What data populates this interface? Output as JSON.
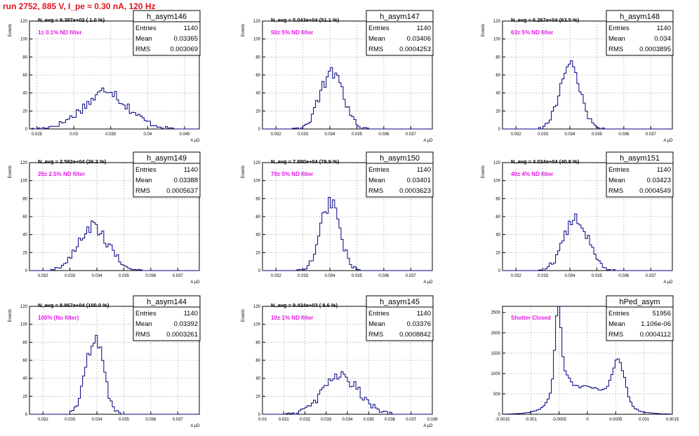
{
  "page_title": "run 2752,   885 V, I_pe ≈ 0.30 nA, 120 Hz",
  "colors": {
    "title": "#e0141e",
    "annotation": "#e617e6",
    "histogram": "#000080",
    "axis": "#000000",
    "grid": "#bfbfbf"
  },
  "chart_data": [
    {
      "type": "histogram",
      "name": "h_asym146",
      "ylabel": "Events",
      "xlabel": "A_{μD}",
      "xlim": [
        0.024,
        0.047
      ],
      "ylim": [
        0,
        120
      ],
      "xticks": [
        0.025,
        0.03,
        0.035,
        0.04,
        0.045
      ],
      "xtick_labels": [
        "0.025",
        "0.03",
        "0.035",
        "0.04",
        "0.045"
      ],
      "yticks": [
        0,
        20,
        40,
        60,
        80,
        100,
        120
      ],
      "stats": {
        "entries": "1140",
        "mean": "0.03365",
        "rms": "0.003069"
      },
      "avg_text": "N_avg = 9.387e+02 ( 1.0 %)",
      "filter_text": "1± 0.1% ND filter",
      "peaks": [
        {
          "center": 0.0343,
          "sigma": 0.0032,
          "height": 38
        },
        {
          "center": 0.0348,
          "sigma": 0.0008,
          "height": 8
        }
      ]
    },
    {
      "type": "histogram",
      "name": "h_asym147",
      "ylabel": "Events",
      "xlabel": "A_{μD}",
      "xlim": [
        0.0315,
        0.0378
      ],
      "ylim": [
        0,
        120
      ],
      "xticks": [
        0.032,
        0.033,
        0.034,
        0.035,
        0.036,
        0.037
      ],
      "xtick_labels": [
        "0.032",
        "0.033",
        "0.034",
        "0.035",
        "0.036",
        "0.037"
      ],
      "yticks": [
        0,
        20,
        40,
        60,
        80,
        100,
        120
      ],
      "stats": {
        "entries": "1140",
        "mean": "0.03406",
        "rms": "0.0004253"
      },
      "avg_text": "N_avg = 5.043e+04 (51.1 %)",
      "filter_text": "50± 5% ND filter",
      "peaks": [
        {
          "center": 0.03406,
          "sigma": 0.000425,
          "height": 62
        }
      ]
    },
    {
      "type": "histogram",
      "name": "h_asym148",
      "ylabel": "Events",
      "xlabel": "A_{μD}",
      "xlim": [
        0.0315,
        0.0378
      ],
      "ylim": [
        0,
        120
      ],
      "xticks": [
        0.032,
        0.033,
        0.034,
        0.035,
        0.036,
        0.037
      ],
      "xtick_labels": [
        "0.032",
        "0.033",
        "0.034",
        "0.035",
        "0.036",
        "0.037"
      ],
      "yticks": [
        0,
        20,
        40,
        60,
        80,
        100,
        120
      ],
      "stats": {
        "entries": "1140",
        "mean": "0.034",
        "rms": "0.0003895"
      },
      "avg_text": "N_avg = 6.267e+04 (63.5 %)",
      "filter_text": "63± 5% ND filter",
      "peaks": [
        {
          "center": 0.034,
          "sigma": 0.00039,
          "height": 68
        }
      ]
    },
    {
      "type": "histogram",
      "name": "h_asym149",
      "ylabel": "Events",
      "xlabel": "A_{μD}",
      "xlim": [
        0.0315,
        0.0378
      ],
      "ylim": [
        0,
        120
      ],
      "xticks": [
        0.032,
        0.033,
        0.034,
        0.035,
        0.036,
        0.037
      ],
      "xtick_labels": [
        "0.032",
        "0.033",
        "0.034",
        "0.035",
        "0.036",
        "0.037"
      ],
      "yticks": [
        0,
        20,
        40,
        60,
        80,
        100,
        120
      ],
      "stats": {
        "entries": "1140",
        "mean": "0.03388",
        "rms": "0.0005637"
      },
      "avg_text": "N_avg = 2.582e+04 (26.2 %)",
      "filter_text": "25± 2.5% ND filter",
      "peaks": [
        {
          "center": 0.03388,
          "sigma": 0.00056,
          "height": 48
        }
      ]
    },
    {
      "type": "histogram",
      "name": "h_asym150",
      "ylabel": "Events",
      "xlabel": "A_{μD}",
      "xlim": [
        0.0315,
        0.0378
      ],
      "ylim": [
        0,
        120
      ],
      "xticks": [
        0.032,
        0.033,
        0.034,
        0.035,
        0.036,
        0.037
      ],
      "xtick_labels": [
        "0.032",
        "0.033",
        "0.034",
        "0.035",
        "0.036",
        "0.037"
      ],
      "yticks": [
        0,
        20,
        40,
        60,
        80,
        100,
        120
      ],
      "stats": {
        "entries": "1140",
        "mean": "0.03401",
        "rms": "0.0003623"
      },
      "avg_text": "N_avg = 7.880e+04 (79.9 %)",
      "filter_text": "79± 5% ND filter",
      "peaks": [
        {
          "center": 0.03401,
          "sigma": 0.00036,
          "height": 76
        }
      ]
    },
    {
      "type": "histogram",
      "name": "h_asym151",
      "ylabel": "Events",
      "xlabel": "A_{μD}",
      "xlim": [
        0.0315,
        0.0378
      ],
      "ylim": [
        0,
        120
      ],
      "xticks": [
        0.032,
        0.033,
        0.034,
        0.035,
        0.036,
        0.037
      ],
      "xtick_labels": [
        "0.032",
        "0.033",
        "0.034",
        "0.035",
        "0.036",
        "0.037"
      ],
      "yticks": [
        0,
        20,
        40,
        60,
        80,
        100,
        120
      ],
      "stats": {
        "entries": "1140",
        "mean": "0.03423",
        "rms": "0.0004549"
      },
      "avg_text": "N_avg = 4.024e+04 (40.8 %)",
      "filter_text": "40± 4% ND filter",
      "peaks": [
        {
          "center": 0.03423,
          "sigma": 0.00045,
          "height": 58
        }
      ]
    },
    {
      "type": "histogram",
      "name": "h_asym144",
      "ylabel": "Events",
      "xlabel": "A_{μD}",
      "xlim": [
        0.0315,
        0.0378
      ],
      "ylim": [
        0,
        120
      ],
      "xticks": [
        0.032,
        0.033,
        0.034,
        0.035,
        0.036,
        0.037
      ],
      "xtick_labels": [
        "0.032",
        "0.033",
        "0.034",
        "0.035",
        "0.036",
        "0.037"
      ],
      "yticks": [
        0,
        20,
        40,
        60,
        80,
        100,
        120
      ],
      "stats": {
        "entries": "1140",
        "mean": "0.03392",
        "rms": "0.0003261"
      },
      "avg_text": "N_avg = 9.867e+04 (100.0 %)",
      "filter_text": "100% (No filter)",
      "peaks": [
        {
          "center": 0.03392,
          "sigma": 0.00033,
          "height": 82
        }
      ]
    },
    {
      "type": "histogram",
      "name": "h_asym145",
      "ylabel": "Events",
      "xlabel": "A_{μD}",
      "xlim": [
        0.03,
        0.038
      ],
      "ylim": [
        0,
        120
      ],
      "xticks": [
        0.03,
        0.031,
        0.032,
        0.033,
        0.034,
        0.035,
        0.036,
        0.037,
        0.038
      ],
      "xtick_labels": [
        "0.03",
        "0.031",
        "0.032",
        "0.033",
        "0.034",
        "0.035",
        "0.036",
        "0.037",
        "0.038"
      ],
      "yticks": [
        0,
        20,
        40,
        60,
        80,
        100,
        120
      ],
      "stats": {
        "entries": "1140",
        "mean": "0.03376",
        "rms": "0.0008842"
      },
      "avg_text": "N_avg = 9.424e+03 ( 9.6 %)",
      "filter_text": "10± 1% ND filter",
      "peaks": [
        {
          "center": 0.0337,
          "sigma": 0.00085,
          "height": 42
        }
      ]
    },
    {
      "type": "histogram",
      "name": "hPed_asym",
      "ylabel": "",
      "xlabel": "",
      "xlim": [
        -0.0015,
        0.0015
      ],
      "ylim": [
        0,
        2650
      ],
      "xticks": [
        -0.0015,
        -0.001,
        -0.0005,
        0,
        0.0005,
        0.001,
        0.0015
      ],
      "xtick_labels": [
        "-0.0015",
        "-0.001",
        "-0.0005",
        "0",
        "0.0005",
        "0.001",
        "0.0015"
      ],
      "yticks": [
        0,
        500,
        1000,
        1500,
        2000,
        2500
      ],
      "stats": {
        "entries": "51956",
        "mean": "1.106e-06",
        "rms": "0.0004112"
      },
      "avg_text": "",
      "filter_text": "Shutter Closed",
      "peaks": [
        {
          "center": -0.00052,
          "sigma": 5e-05,
          "height": 1750
        },
        {
          "center": -0.00047,
          "sigma": 0.00013,
          "height": 650
        },
        {
          "center": 0.0,
          "sigma": 0.00045,
          "height": 680
        },
        {
          "center": 0.00055,
          "sigma": 0.00011,
          "height": 1020
        }
      ]
    }
  ]
}
